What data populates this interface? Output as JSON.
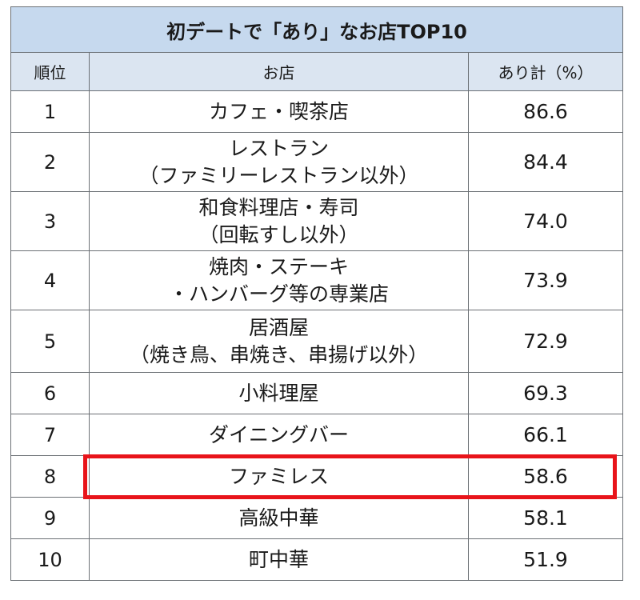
{
  "table": {
    "title": "初デートで「あり」なお店TOP10",
    "headers": [
      "順位",
      "お店",
      "あり計（%）"
    ],
    "rows": [
      {
        "rank": "1",
        "shop": "カフェ・喫茶店",
        "value": "86.6"
      },
      {
        "rank": "2",
        "shop": "レストラン\n（ファミリーレストラン以外）",
        "value": "84.4"
      },
      {
        "rank": "3",
        "shop": "和食料理店・寿司\n（回転すし以外）",
        "value": "74.0"
      },
      {
        "rank": "4",
        "shop": "焼肉・ステーキ\n・ハンバーグ等の専業店",
        "value": "73.9"
      },
      {
        "rank": "5",
        "shop": "居酒屋\n（焼き鳥、串焼き、串揚げ以外）",
        "value": "72.9"
      },
      {
        "rank": "6",
        "shop": "小料理屋",
        "value": "69.3"
      },
      {
        "rank": "7",
        "shop": "ダイニングバー",
        "value": "66.1"
      },
      {
        "rank": "8",
        "shop": "ファミレス",
        "value": "58.6"
      },
      {
        "rank": "9",
        "shop": "高級中華",
        "value": "58.1"
      },
      {
        "rank": "10",
        "shop": "町中華",
        "value": "51.9"
      }
    ],
    "highlighted_rank": "8",
    "highlight_color": "#e8141a"
  },
  "chart_data": {
    "type": "table",
    "title": "初デートで「あり」なお店TOP10",
    "columns": [
      "順位",
      "お店",
      "あり計（%）"
    ],
    "categories": [
      "カフェ・喫茶店",
      "レストラン（ファミリーレストラン以外）",
      "和食料理店・寿司（回転すし以外）",
      "焼肉・ステーキ・ハンバーグ等の専業店",
      "居酒屋（焼き鳥、串焼き、串揚げ以外）",
      "小料理屋",
      "ダイニングバー",
      "ファミレス",
      "高級中華",
      "町中華"
    ],
    "values": [
      86.6,
      84.4,
      74.0,
      73.9,
      72.9,
      69.3,
      66.1,
      58.6,
      58.1,
      51.9
    ]
  }
}
